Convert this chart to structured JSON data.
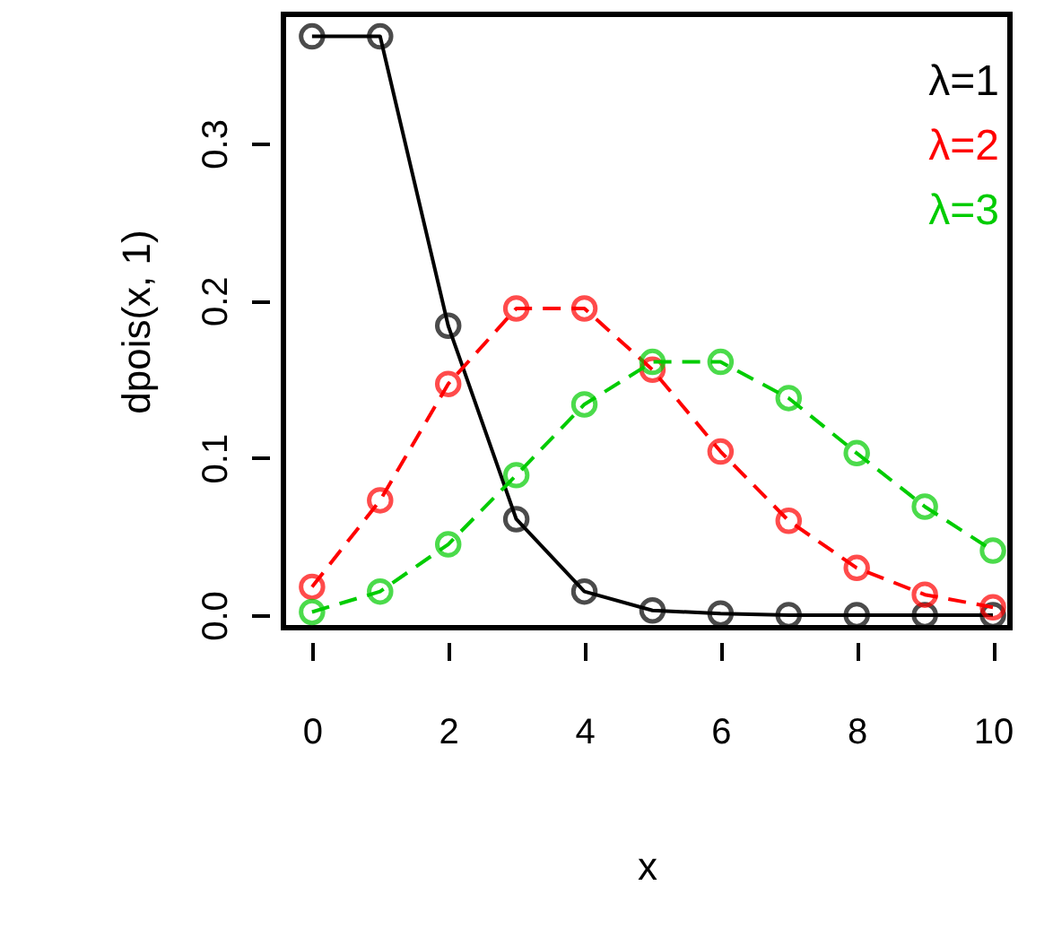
{
  "chart_data": {
    "type": "line",
    "xlabel": "x",
    "ylabel": "dpois(x, 1)",
    "x": [
      0,
      1,
      2,
      3,
      4,
      5,
      6,
      7,
      8,
      9,
      10
    ],
    "series": [
      {
        "name": "λ=1",
        "color": "#000000",
        "line_style": "solid",
        "values": [
          0.368,
          0.368,
          0.184,
          0.061,
          0.015,
          0.003,
          0.001,
          0.0,
          0.0,
          0.0,
          0.0
        ]
      },
      {
        "name": "λ=2",
        "color": "#ff0000",
        "line_style": "dashed",
        "values": [
          0.018,
          0.073,
          0.147,
          0.195,
          0.195,
          0.156,
          0.104,
          0.06,
          0.03,
          0.013,
          0.005
        ]
      },
      {
        "name": "λ=3",
        "color": "#00cc00",
        "line_style": "dashed",
        "values": [
          0.002,
          0.015,
          0.045,
          0.089,
          0.134,
          0.161,
          0.161,
          0.138,
          0.103,
          0.069,
          0.041
        ]
      }
    ],
    "xlim": [
      -0.42,
      10.25
    ],
    "ylim": [
      -0.008,
      0.382
    ],
    "xticks": [
      0,
      2,
      4,
      6,
      8,
      10
    ],
    "yticks": [
      {
        "value": 0,
        "label": "0.0"
      },
      {
        "value": 0.1,
        "label": "0.1"
      },
      {
        "value": 0.2,
        "label": "0.2"
      },
      {
        "value": 0.3,
        "label": "0.3"
      }
    ],
    "marker": "circle",
    "grid": false,
    "legend": "top right"
  }
}
